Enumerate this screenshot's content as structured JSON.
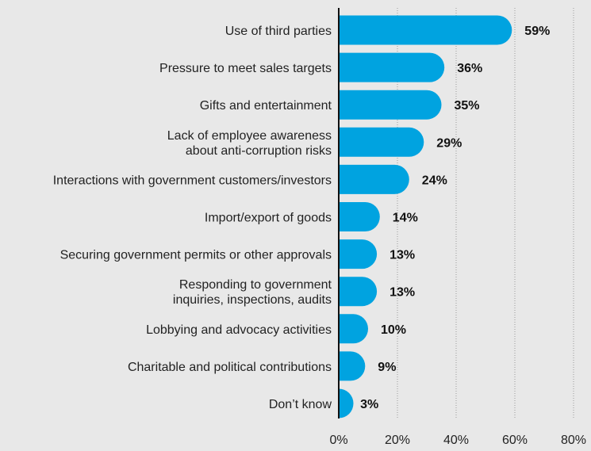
{
  "chart_data": {
    "type": "bar",
    "orientation": "horizontal",
    "categories": [
      [
        "Use of third parties"
      ],
      [
        "Pressure to meet sales targets"
      ],
      [
        "Gifts and entertainment"
      ],
      [
        "Lack of employee awareness",
        "about anti-corruption risks"
      ],
      [
        "Interactions with government customers/investors"
      ],
      [
        "Import/export of goods"
      ],
      [
        "Securing government permits or other approvals"
      ],
      [
        "Responding to government",
        "inquiries, inspections, audits"
      ],
      [
        "Lobbying and advocacy activities"
      ],
      [
        "Charitable and political contributions"
      ],
      [
        "Don’t know"
      ]
    ],
    "values": [
      59,
      36,
      35,
      29,
      24,
      14,
      13,
      13,
      10,
      9,
      3
    ],
    "value_labels": [
      "59%",
      "36%",
      "35%",
      "29%",
      "24%",
      "14%",
      "13%",
      "13%",
      "10%",
      "9%",
      "3%"
    ],
    "xlim": [
      0,
      80
    ],
    "xticks": [
      0,
      20,
      40,
      60,
      80
    ],
    "xtick_labels": [
      "0%",
      "20%",
      "40%",
      "60%",
      "80%"
    ],
    "grid": "vertical dotted",
    "bar_color": "#00a3e0",
    "background_color": "#e8e8e8",
    "title": "",
    "xlabel": "",
    "ylabel": ""
  }
}
